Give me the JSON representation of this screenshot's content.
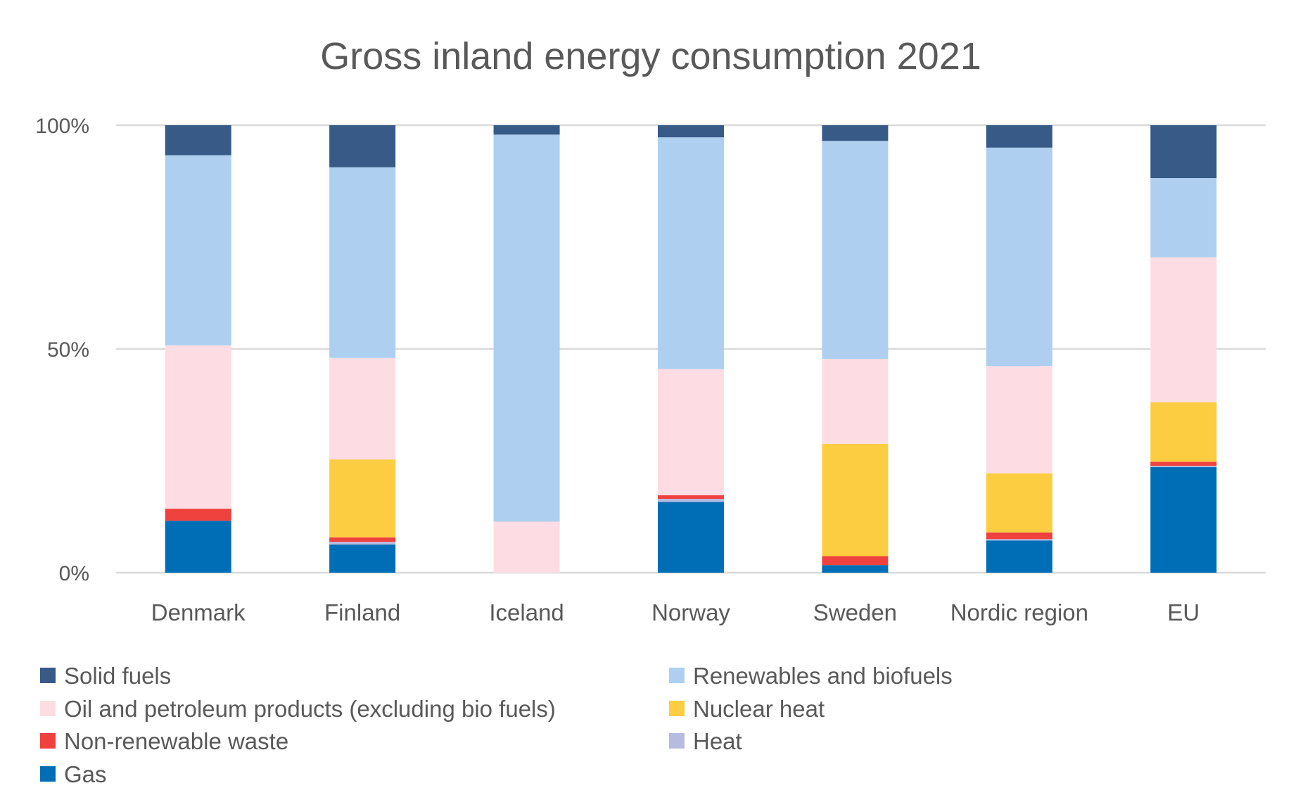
{
  "chart_data": {
    "type": "bar",
    "stacked": true,
    "normalized": true,
    "title": "Gross inland energy consumption 2021",
    "xlabel": "",
    "ylabel": "",
    "ylim": [
      0,
      100
    ],
    "y_ticks": [
      0,
      50,
      100
    ],
    "y_tick_labels": [
      "0%",
      "50%",
      "100%"
    ],
    "grid": true,
    "legend_position": "bottom",
    "categories": [
      "Denmark",
      "Finland",
      "Iceland",
      "Norway",
      "Sweden",
      "Nordic region",
      "EU"
    ],
    "series": [
      {
        "name": "Gas",
        "color": "#006EB6",
        "values": [
          11.6,
          6.3,
          0,
          15.8,
          1.7,
          7.2,
          23.6
        ]
      },
      {
        "name": "Heat",
        "color": "#B7BBE0",
        "values": [
          0,
          0.6,
          0,
          0.7,
          0,
          0.3,
          0.3
        ]
      },
      {
        "name": "Non-renewable waste",
        "color": "#EF413D",
        "values": [
          2.7,
          1.0,
          0,
          0.8,
          2.0,
          1.5,
          0.9
        ]
      },
      {
        "name": "Nuclear heat",
        "color": "#FDCD41",
        "values": [
          0,
          17.4,
          0,
          0,
          25.1,
          13.2,
          13.3
        ]
      },
      {
        "name": "Oil and petroleum products (excluding bio fuels)",
        "color": "#FDDDE3",
        "values": [
          36.5,
          22.7,
          11.4,
          28.2,
          19.0,
          24.0,
          32.4
        ]
      },
      {
        "name": "Renewables and biofuels",
        "color": "#AECFF0",
        "values": [
          42.5,
          42.6,
          86.5,
          51.8,
          48.7,
          48.8,
          17.7
        ]
      },
      {
        "name": "Solid fuels",
        "color": "#375A87",
        "values": [
          6.7,
          9.4,
          2.1,
          2.7,
          3.5,
          5.0,
          11.8
        ]
      }
    ],
    "legend_order": [
      "Solid fuels",
      "Renewables and biofuels",
      "Oil and petroleum products (excluding bio fuels)",
      "Nuclear heat",
      "Non-renewable waste",
      "Heat",
      "Gas"
    ]
  }
}
